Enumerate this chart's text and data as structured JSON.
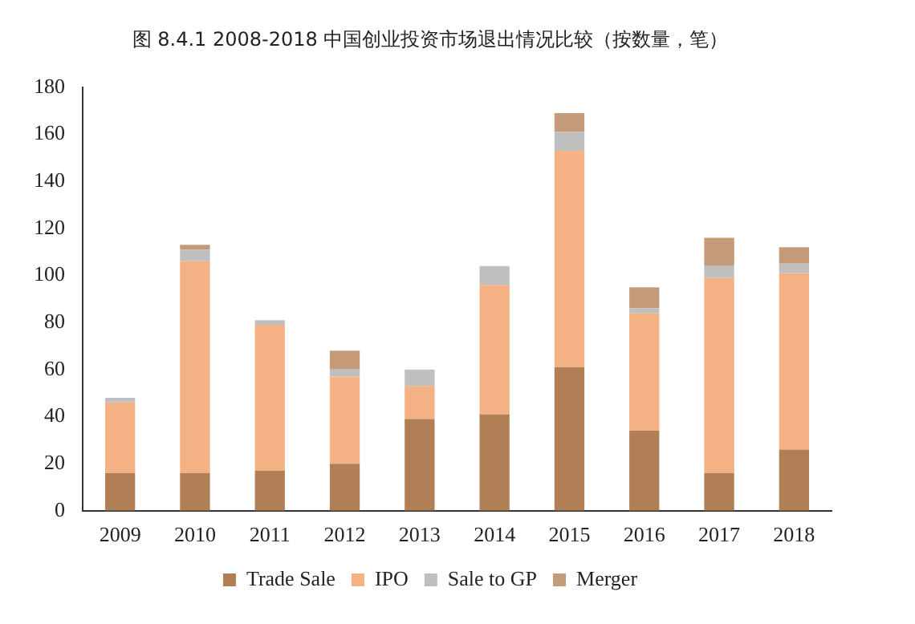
{
  "chart_data": {
    "type": "bar",
    "title": "图 8.4.1 2008-2018 中国创业投资市场退出情况比较（按数量，笔）",
    "categories": [
      "2009",
      "2010",
      "2011",
      "2012",
      "2013",
      "2014",
      "2015",
      "2016",
      "2017",
      "2018"
    ],
    "stacked": true,
    "ylim": [
      0,
      180
    ],
    "yticks": [
      0,
      20,
      40,
      60,
      80,
      100,
      120,
      140,
      160,
      180
    ],
    "grid": false,
    "legend": "bottom",
    "series": [
      {
        "name": "Trade Sale",
        "color": "#b07f55",
        "values": [
          16,
          16,
          17,
          20,
          39,
          41,
          61,
          34,
          16,
          26
        ]
      },
      {
        "name": "IPO",
        "color": "#f4b183",
        "values": [
          30,
          90,
          62,
          37,
          14,
          55,
          92,
          50,
          83,
          75
        ]
      },
      {
        "name": "Sale to GP",
        "color": "#bfbfbf",
        "values": [
          2,
          5,
          2,
          3,
          7,
          8,
          8,
          2,
          5,
          4
        ]
      },
      {
        "name": "Merger",
        "color": "#c49a78",
        "values": [
          0,
          2,
          0,
          8,
          0,
          0,
          8,
          9,
          12,
          7
        ]
      }
    ]
  }
}
